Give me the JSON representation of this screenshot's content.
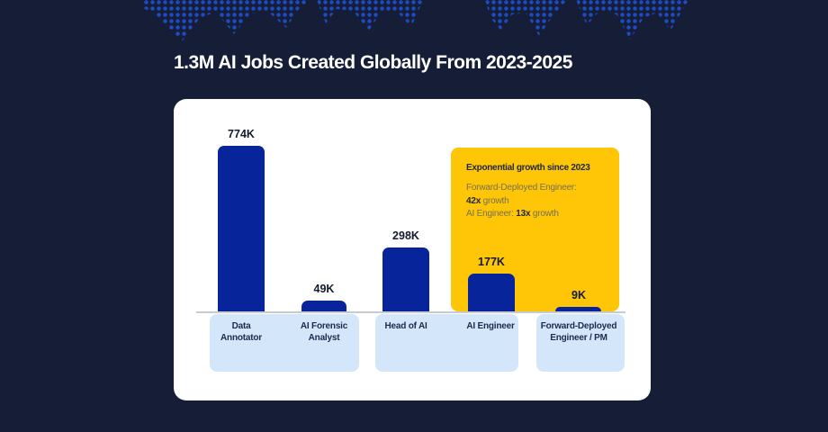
{
  "title": "1.3M AI Jobs Created Globally From 2023-2025",
  "colors": {
    "background": "#151E36",
    "card": "#FFFFFF",
    "bar": "#07249B",
    "dots": "#1E4BC4",
    "highlight": "#FEC606",
    "panel": "#D4E7FA",
    "axis": "#C6CAD2",
    "value_label": "#131A2E",
    "category_label": "#1A2B4C",
    "note_title_color": "#22283E",
    "note_body_color": "#75704E"
  },
  "chart_data": {
    "type": "bar",
    "title": "1.3M AI Jobs Created Globally From 2023-2025",
    "categories": [
      "Data Annotator",
      "AI Forensic Analyst",
      "Head of AI",
      "AI Engineer",
      "Forward-Deployed Engineer / PM"
    ],
    "values": [
      774000,
      49000,
      298000,
      177000,
      9000
    ],
    "value_labels": [
      "774K",
      "49K",
      "298K",
      "177K",
      "9K"
    ],
    "xlabel": "",
    "ylabel": "",
    "ylim": [
      0,
      800000
    ],
    "grid": false,
    "legend": false,
    "bar_color": "#07249B",
    "annotation": {
      "title": "Exponential growth since 2023",
      "lines": [
        "Forward-Deployed Engineer: 42x growth",
        "AI Engineer: 13x growth"
      ]
    }
  },
  "bars": [
    {
      "value": "774K",
      "label_line1": "Data",
      "label_line2": "Annotator"
    },
    {
      "value": "49K",
      "label_line1": "AI Forensic",
      "label_line2": "Analyst"
    },
    {
      "value": "298K",
      "label_line1": "Head of AI",
      "label_line2": ""
    },
    {
      "value": "177K",
      "label_line1": "AI Engineer",
      "label_line2": ""
    },
    {
      "value": "9K",
      "label_line1": "Forward-Deployed",
      "label_line2": "Engineer / PM"
    }
  ],
  "note": {
    "title": "Exponential growth since 2023",
    "line1": "Forward-Deployed Engineer:",
    "line2_bold": "42x",
    "line2_rest": " growth",
    "line3_pre": "AI Engineer: ",
    "line3_bold": "13x",
    "line3_rest": " growth"
  }
}
